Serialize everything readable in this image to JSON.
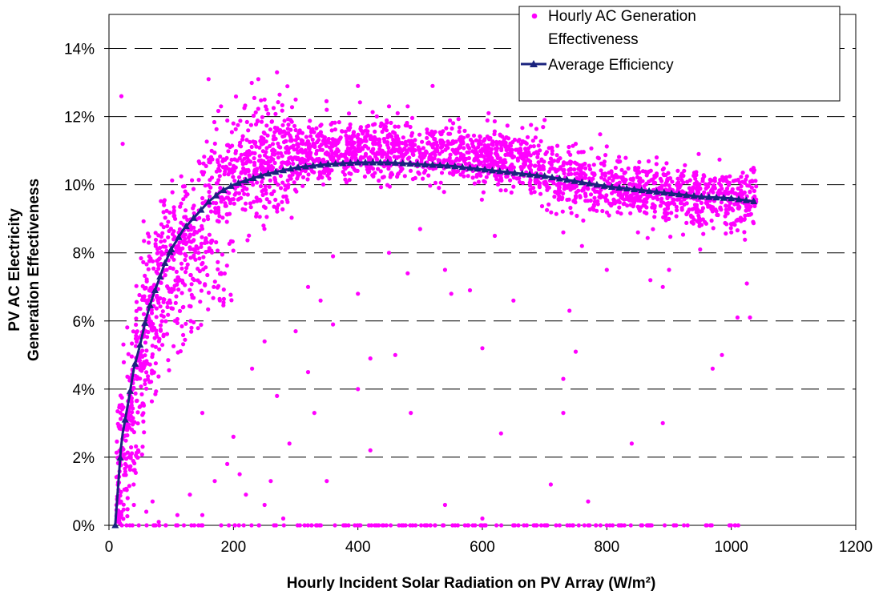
{
  "chart_data": {
    "type": "scatter",
    "xlabel": "Hourly Incident Solar Radiation on PV Array (W/m²)",
    "ylabel_lines": [
      "PV AC Electricity",
      "Generation Effectiveness"
    ],
    "xlim": [
      0,
      1200
    ],
    "ylim": [
      0,
      15
    ],
    "x_ticks": [
      0,
      200,
      400,
      600,
      800,
      1000,
      1200
    ],
    "y_ticks": [
      0,
      2,
      4,
      6,
      8,
      10,
      12,
      14
    ],
    "y_tick_labels": [
      "0%",
      "2%",
      "4%",
      "6%",
      "8%",
      "10%",
      "12%",
      "14%"
    ],
    "grid": "horizontal dashed",
    "legend_position": "top-right",
    "legend": [
      {
        "lines": [
          "Hourly AC Generation",
          "Effectiveness"
        ],
        "marker": "dot"
      },
      {
        "lines": [
          "Average Efficiency"
        ],
        "marker": "line-triangle"
      }
    ],
    "colors": {
      "scatter": "#ff00ff",
      "average": "#1a237e"
    },
    "series": [
      {
        "name": "Hourly AC Generation Effectiveness",
        "kind": "scatter",
        "points": [
          [
            20,
            12.6
          ],
          [
            22,
            11.2
          ],
          [
            160,
            13.1
          ],
          [
            240,
            13.1
          ],
          [
            250,
            12.5
          ],
          [
            270,
            13.3
          ],
          [
            300,
            12.5
          ],
          [
            400,
            12.9
          ],
          [
            450,
            12.3
          ],
          [
            520,
            12.9
          ],
          [
            610,
            12.1
          ],
          [
            480,
            12.3
          ],
          [
            350,
            12.2
          ],
          [
            180,
            12.3
          ],
          [
            200,
            11.8
          ],
          [
            700,
            11.9
          ],
          [
            750,
            11.2
          ],
          [
            880,
            10.8
          ],
          [
            990,
            9.8
          ],
          [
            1010,
            9.7
          ],
          [
            1030,
            9.8
          ],
          [
            320,
            7.0
          ],
          [
            340,
            6.6
          ],
          [
            360,
            7.9
          ],
          [
            400,
            6.8
          ],
          [
            450,
            8.0
          ],
          [
            480,
            7.4
          ],
          [
            500,
            8.7
          ],
          [
            540,
            7.5
          ],
          [
            550,
            6.8
          ],
          [
            580,
            6.9
          ],
          [
            620,
            8.5
          ],
          [
            650,
            6.6
          ],
          [
            730,
            8.6
          ],
          [
            760,
            8.2
          ],
          [
            800,
            7.5
          ],
          [
            850,
            8.6
          ],
          [
            900,
            7.5
          ],
          [
            950,
            8.1
          ],
          [
            1000,
            8.6
          ],
          [
            1010,
            6.1
          ],
          [
            1025,
            7.1
          ],
          [
            1030,
            6.1
          ],
          [
            250,
            5.4
          ],
          [
            300,
            5.7
          ],
          [
            360,
            5.9
          ],
          [
            400,
            4.0
          ],
          [
            420,
            4.9
          ],
          [
            460,
            5.0
          ],
          [
            600,
            5.2
          ],
          [
            730,
            4.3
          ],
          [
            750,
            5.1
          ],
          [
            870,
            7.2
          ],
          [
            890,
            7.0
          ],
          [
            970,
            4.6
          ],
          [
            985,
            5.0
          ],
          [
            740,
            6.3
          ],
          [
            150,
            3.3
          ],
          [
            200,
            2.6
          ],
          [
            220,
            0.9
          ],
          [
            230,
            4.6
          ],
          [
            260,
            1.3
          ],
          [
            270,
            3.8
          ],
          [
            290,
            2.4
          ],
          [
            320,
            4.5
          ],
          [
            330,
            3.3
          ],
          [
            350,
            1.3
          ],
          [
            420,
            2.2
          ],
          [
            485,
            3.3
          ],
          [
            540,
            0.6
          ],
          [
            600,
            0.2
          ],
          [
            630,
            2.7
          ],
          [
            710,
            1.2
          ],
          [
            730,
            3.3
          ],
          [
            770,
            0.7
          ],
          [
            840,
            2.4
          ],
          [
            890,
            3.0
          ],
          [
            1040,
            9.5
          ],
          [
            30,
            0.8
          ],
          [
            40,
            0.6
          ],
          [
            60,
            0.4
          ],
          [
            70,
            0.7
          ],
          [
            80,
            0.1
          ],
          [
            110,
            0.3
          ],
          [
            130,
            0.9
          ],
          [
            150,
            0.3
          ],
          [
            170,
            1.3
          ],
          [
            190,
            1.8
          ],
          [
            210,
            1.5
          ],
          [
            250,
            0.6
          ],
          [
            280,
            0.2
          ]
        ],
        "dense_cloud_note": "several thousand additional hourly points forming a band around the average-efficiency curve (roughly 0.7%-3% spread), plus many points lying on 0%"
      },
      {
        "name": "Average Efficiency",
        "kind": "line",
        "points": [
          [
            10,
            0
          ],
          [
            15,
            1.2
          ],
          [
            20,
            2.5
          ],
          [
            30,
            3.5
          ],
          [
            40,
            4.6
          ],
          [
            50,
            5.3
          ],
          [
            60,
            6.1
          ],
          [
            70,
            6.7
          ],
          [
            80,
            7.2
          ],
          [
            90,
            7.7
          ],
          [
            100,
            8.1
          ],
          [
            120,
            8.7
          ],
          [
            140,
            9.1
          ],
          [
            160,
            9.5
          ],
          [
            180,
            9.8
          ],
          [
            200,
            10.0
          ],
          [
            250,
            10.3
          ],
          [
            300,
            10.5
          ],
          [
            350,
            10.6
          ],
          [
            400,
            10.65
          ],
          [
            450,
            10.65
          ],
          [
            500,
            10.6
          ],
          [
            550,
            10.55
          ],
          [
            600,
            10.45
          ],
          [
            650,
            10.35
          ],
          [
            700,
            10.25
          ],
          [
            750,
            10.1
          ],
          [
            800,
            9.95
          ],
          [
            850,
            9.85
          ],
          [
            900,
            9.75
          ],
          [
            950,
            9.65
          ],
          [
            1000,
            9.6
          ],
          [
            1040,
            9.5
          ]
        ]
      }
    ]
  }
}
